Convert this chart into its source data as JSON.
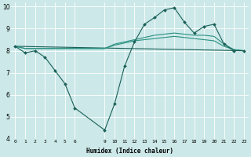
{
  "xlabel": "Humidex (Indice chaleur)",
  "bg_color": "#cce8e8",
  "grid_color": "#ffffff",
  "line_color_light": "#2a9080",
  "line_color_dark": "#1a6058",
  "xlim": [
    -0.5,
    23.5
  ],
  "ylim": [
    4,
    10.2
  ],
  "xticks": [
    0,
    1,
    2,
    3,
    4,
    5,
    6,
    9,
    10,
    11,
    12,
    13,
    14,
    15,
    16,
    17,
    18,
    19,
    20,
    21,
    22,
    23
  ],
  "yticks": [
    4,
    5,
    6,
    7,
    8,
    9,
    10
  ],
  "series1_x": [
    0,
    1,
    2,
    3,
    4,
    5,
    6,
    9,
    10,
    11,
    12,
    13,
    14,
    15,
    16,
    17,
    18,
    19,
    20,
    21,
    22,
    23
  ],
  "series1_y": [
    8.2,
    7.9,
    8.0,
    7.7,
    7.1,
    6.5,
    5.4,
    4.4,
    5.6,
    7.3,
    8.4,
    9.2,
    9.5,
    9.85,
    9.95,
    9.3,
    8.8,
    9.1,
    9.2,
    8.3,
    8.0,
    8.0
  ],
  "series2_x": [
    0,
    1,
    2,
    3,
    4,
    5,
    6,
    9,
    10,
    11,
    12,
    13,
    14,
    15,
    16,
    17,
    18,
    19,
    20,
    21,
    22,
    23
  ],
  "series2_y": [
    8.2,
    8.1,
    8.1,
    8.1,
    8.1,
    8.1,
    8.1,
    8.1,
    8.3,
    8.4,
    8.5,
    8.6,
    8.7,
    8.75,
    8.8,
    8.75,
    8.7,
    8.7,
    8.65,
    8.3,
    8.05,
    8.0
  ],
  "series3_x": [
    0,
    23
  ],
  "series3_y": [
    8.2,
    8.0
  ],
  "series4_x": [
    0,
    1,
    2,
    3,
    4,
    5,
    6,
    9,
    10,
    11,
    12,
    13,
    14,
    15,
    16,
    17,
    18,
    19,
    20,
    21,
    22,
    23
  ],
  "series4_y": [
    8.2,
    8.1,
    8.1,
    8.1,
    8.1,
    8.1,
    8.1,
    8.1,
    8.25,
    8.35,
    8.45,
    8.5,
    8.55,
    8.6,
    8.65,
    8.6,
    8.55,
    8.5,
    8.45,
    8.2,
    8.05,
    8.0
  ]
}
